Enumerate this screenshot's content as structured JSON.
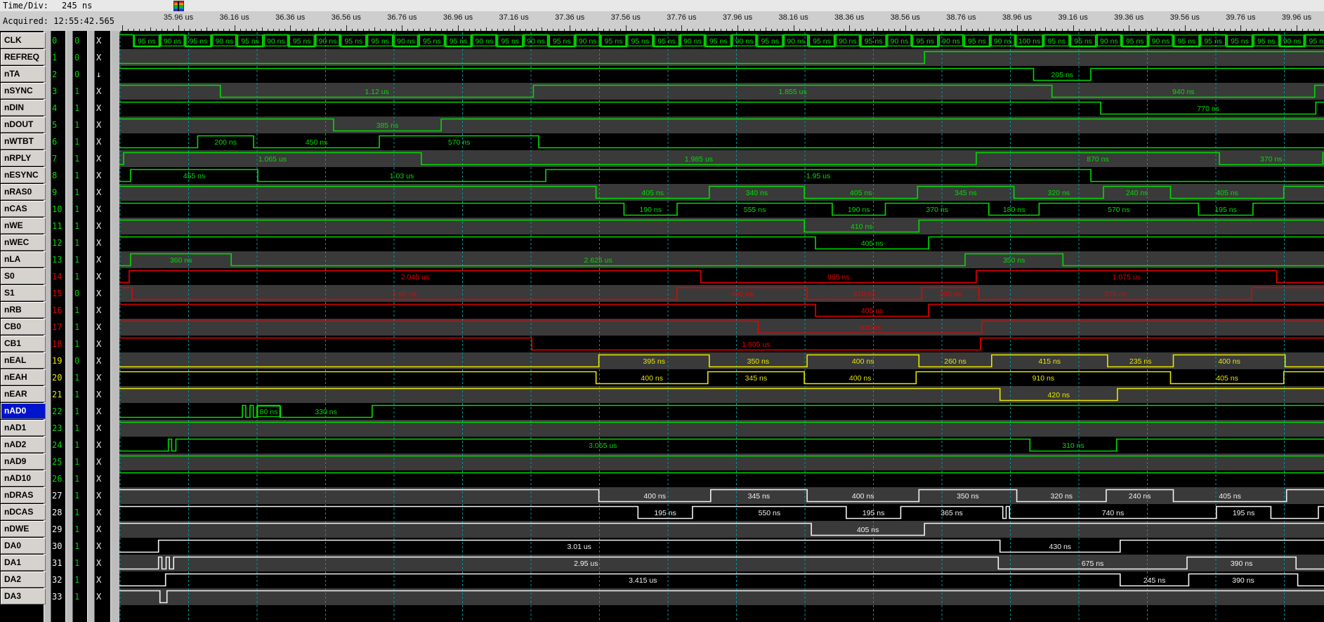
{
  "header": {
    "time_div_label": "Time/Div:",
    "time_div_value": "245 ns",
    "acquired_label": "Acquired:",
    "acquired_value": "12:55:42.565"
  },
  "ruler": {
    "unit_labels": [
      "35.96 us",
      "36.16 us",
      "36.36 us",
      "36.56 us",
      "36.76 us",
      "36.96 us",
      "37.16 us",
      "37.36 us",
      "37.56 us",
      "37.76 us",
      "37.96 us",
      "38.16 us",
      "38.36 us",
      "38.56 us",
      "38.76 us",
      "38.96 us",
      "39.16 us",
      "39.36 us",
      "39.56 us",
      "39.76 us",
      "39.96 us"
    ]
  },
  "colors": {
    "green": "#00dc00",
    "red": "#e80000",
    "yellow": "#e6e600",
    "white": "#f2f2f2",
    "value": "#00d000",
    "trig": "#f0f0f0",
    "grid": "#00979c",
    "row_even_bg": "#000000",
    "row_odd_bg": "#3a3a3a",
    "selected_bg": "#0014cc"
  },
  "selected_signal": "nAD0",
  "signals": [
    {
      "name": "CLK",
      "ch": "0",
      "value": "0",
      "trig": "X",
      "color": "green",
      "clk": {
        "lead_ns": 50,
        "durations": [
          95,
          90,
          95,
          90,
          95,
          90,
          95,
          90,
          95,
          95,
          90,
          95,
          95,
          90,
          95,
          90,
          95,
          90,
          95,
          95,
          95,
          90,
          95,
          90,
          95,
          90,
          95,
          90,
          95,
          90,
          95,
          90,
          95,
          90,
          100,
          95,
          95,
          90,
          95,
          90,
          95,
          95,
          95,
          95,
          90,
          95
        ]
      }
    },
    {
      "name": "REFREQ",
      "ch": "1",
      "value": "0",
      "trig": "X",
      "color": "green",
      "segments": [
        [
          0,
          2880
        ],
        [
          1,
          1430
        ]
      ]
    },
    {
      "name": "nTA",
      "ch": "2",
      "value": "0",
      "trig": "↓",
      "color": "green",
      "segments": [
        [
          1,
          3270
        ],
        [
          0,
          205,
          "205 ns"
        ],
        [
          1,
          835
        ]
      ]
    },
    {
      "name": "nSYNC",
      "ch": "3",
      "value": "1",
      "trig": "X",
      "color": "green",
      "segments": [
        [
          1,
          361
        ],
        [
          0,
          1120,
          "1.12 us"
        ],
        [
          1,
          1855,
          "1.855 us"
        ],
        [
          0,
          940,
          "940 ns"
        ],
        [
          1,
          34
        ]
      ]
    },
    {
      "name": "nDIN",
      "ch": "4",
      "value": "1",
      "trig": "X",
      "color": "green",
      "segments": [
        [
          1,
          3510
        ],
        [
          0,
          770,
          "770 ns"
        ],
        [
          1,
          30
        ]
      ]
    },
    {
      "name": "nDOUT",
      "ch": "5",
      "value": "1",
      "trig": "X",
      "color": "green",
      "segments": [
        [
          1,
          766
        ],
        [
          0,
          385,
          "385 ns"
        ],
        [
          1,
          3159
        ]
      ]
    },
    {
      "name": "nWTBT",
      "ch": "6",
      "value": "1",
      "trig": "X",
      "color": "green",
      "segments": [
        [
          0,
          280
        ],
        [
          1,
          200,
          "200 ns"
        ],
        [
          0,
          450,
          "450 ns"
        ],
        [
          1,
          570,
          "570 ns"
        ],
        [
          0,
          2810
        ]
      ]
    },
    {
      "name": "nRPLY",
      "ch": "7",
      "value": "1",
      "trig": "X",
      "color": "green",
      "segments": [
        [
          0,
          15
        ],
        [
          1,
          1065,
          "1.065 us"
        ],
        [
          0,
          1985,
          "1.985 us"
        ],
        [
          1,
          870,
          "870 ns"
        ],
        [
          0,
          370,
          "370 ns"
        ],
        [
          1,
          5
        ]
      ]
    },
    {
      "name": "nESYNC",
      "ch": "8",
      "value": "1",
      "trig": "X",
      "color": "green",
      "segments": [
        [
          0,
          40
        ],
        [
          1,
          455,
          "455 ns"
        ],
        [
          0,
          1030,
          "1.03 us"
        ],
        [
          1,
          1950,
          "1.95 us"
        ],
        [
          0,
          835
        ]
      ]
    },
    {
      "name": "nRAS0",
      "ch": "9",
      "value": "1",
      "trig": "X",
      "color": "green",
      "segments": [
        [
          1,
          1705
        ],
        [
          0,
          405,
          "405 ns"
        ],
        [
          1,
          340,
          "340 ns"
        ],
        [
          0,
          405,
          "405 ns"
        ],
        [
          1,
          345,
          "345 ns"
        ],
        [
          0,
          320,
          "320 ns"
        ],
        [
          1,
          240,
          "240 ns"
        ],
        [
          0,
          405,
          "405 ns"
        ],
        [
          1,
          145
        ]
      ]
    },
    {
      "name": "nCAS",
      "ch": "10",
      "value": "1",
      "trig": "X",
      "color": "green",
      "segments": [
        [
          1,
          1805
        ],
        [
          0,
          190,
          "190 ns"
        ],
        [
          1,
          555,
          "555 ns"
        ],
        [
          0,
          190,
          "190 ns"
        ],
        [
          1,
          370,
          "370 ns"
        ],
        [
          0,
          180,
          "180 ns"
        ],
        [
          1,
          570,
          "570 ns"
        ],
        [
          0,
          195,
          "195 ns"
        ],
        [
          1,
          255
        ]
      ]
    },
    {
      "name": "nWE",
      "ch": "11",
      "value": "1",
      "trig": "X",
      "color": "green",
      "segments": [
        [
          1,
          2450
        ],
        [
          0,
          410,
          "410 ns"
        ],
        [
          1,
          1450
        ]
      ]
    },
    {
      "name": "nWEC",
      "ch": "12",
      "value": "1",
      "trig": "X",
      "color": "green",
      "segments": [
        [
          1,
          2490
        ],
        [
          0,
          405,
          "405 ns"
        ],
        [
          1,
          1415
        ]
      ]
    },
    {
      "name": "nLA",
      "ch": "13",
      "value": "1",
      "trig": "X",
      "color": "green",
      "segments": [
        [
          0,
          40
        ],
        [
          1,
          360,
          "360 ns"
        ],
        [
          0,
          2625,
          "2.625 us"
        ],
        [
          1,
          350,
          "350 ns"
        ],
        [
          0,
          935
        ]
      ]
    },
    {
      "name": "S0",
      "ch": "14",
      "value": "1",
      "trig": "X",
      "color": "red",
      "segments": [
        [
          0,
          35
        ],
        [
          1,
          2045,
          "2.045 us"
        ],
        [
          0,
          985,
          "985 ns"
        ],
        [
          1,
          1075,
          "1.075 us"
        ],
        [
          0,
          170
        ]
      ]
    },
    {
      "name": "S1",
      "ch": "15",
      "value": "0",
      "trig": "X",
      "color": "red",
      "segments": [
        [
          1,
          45
        ],
        [
          0,
          1950,
          "1.95 us"
        ],
        [
          1,
          465,
          "465 ns"
        ],
        [
          0,
          410,
          "410 ns"
        ],
        [
          1,
          205,
          "205 ns"
        ],
        [
          0,
          975,
          "975 ns"
        ],
        [
          1,
          260
        ]
      ]
    },
    {
      "name": "nRB",
      "ch": "16",
      "value": "1",
      "trig": "X",
      "color": "red",
      "segments": [
        [
          1,
          2490
        ],
        [
          0,
          405,
          "405 ns"
        ],
        [
          1,
          1415
        ]
      ]
    },
    {
      "name": "CB0",
      "ch": "17",
      "value": "1",
      "trig": "X",
      "color": "red",
      "segments": [
        [
          1,
          2285
        ],
        [
          0,
          800,
          "800 ns"
        ],
        [
          1,
          1225
        ]
      ]
    },
    {
      "name": "CB1",
      "ch": "18",
      "value": "1",
      "trig": "X",
      "color": "red",
      "segments": [
        [
          1,
          1475
        ],
        [
          0,
          1605,
          "1.605 us"
        ],
        [
          1,
          1230
        ]
      ]
    },
    {
      "name": "nEAL",
      "ch": "19",
      "value": "0",
      "trig": "X",
      "color": "yellow",
      "segments": [
        [
          0,
          1715
        ],
        [
          1,
          395,
          "395 ns"
        ],
        [
          0,
          350,
          "350 ns"
        ],
        [
          1,
          400,
          "400 ns"
        ],
        [
          0,
          260,
          "260 ns"
        ],
        [
          1,
          415,
          "415 ns"
        ],
        [
          0,
          235,
          "235 ns"
        ],
        [
          1,
          400,
          "400 ns"
        ],
        [
          0,
          140
        ]
      ]
    },
    {
      "name": "nEAH",
      "ch": "20",
      "value": "1",
      "trig": "X",
      "color": "yellow",
      "segments": [
        [
          1,
          1705
        ],
        [
          0,
          400,
          "400 ns"
        ],
        [
          1,
          345,
          "345 ns"
        ],
        [
          0,
          400,
          "400 ns"
        ],
        [
          1,
          910,
          "910 ns"
        ],
        [
          0,
          405,
          "405 ns"
        ],
        [
          1,
          145
        ]
      ]
    },
    {
      "name": "nEAR",
      "ch": "21",
      "value": "1",
      "trig": "X",
      "color": "yellow",
      "segments": [
        [
          1,
          3150
        ],
        [
          0,
          420,
          "420 ns"
        ],
        [
          1,
          740
        ]
      ]
    },
    {
      "name": "nAD0",
      "ch": "22",
      "value": "1",
      "trig": "X",
      "color": "green",
      "segments": [
        [
          0,
          440
        ],
        [
          1,
          12
        ],
        [
          0,
          15
        ],
        [
          1,
          12
        ],
        [
          0,
          15
        ],
        [
          1,
          80,
          "80 ns",
          true
        ],
        [
          0,
          330,
          "330 ns"
        ],
        [
          1,
          3406
        ]
      ]
    },
    {
      "name": "nAD1",
      "ch": "23",
      "value": "1",
      "trig": "X",
      "color": "green",
      "segments": [
        [
          1,
          4310
        ]
      ]
    },
    {
      "name": "nAD2",
      "ch": "24",
      "value": "1",
      "trig": "X",
      "color": "green",
      "segments": [
        [
          0,
          175
        ],
        [
          1,
          12
        ],
        [
          0,
          15
        ],
        [
          1,
          3055,
          "3.055 us"
        ],
        [
          0,
          310,
          "310 ns"
        ],
        [
          1,
          743
        ]
      ]
    },
    {
      "name": "nAD9",
      "ch": "25",
      "value": "1",
      "trig": "X",
      "color": "green",
      "segments": [
        [
          1,
          4310
        ]
      ]
    },
    {
      "name": "nAD10",
      "ch": "26",
      "value": "1",
      "trig": "X",
      "color": "green",
      "segments": [
        [
          1,
          4310
        ]
      ]
    },
    {
      "name": "nDRAS",
      "ch": "27",
      "value": "1",
      "trig": "X",
      "color": "white",
      "segments": [
        [
          1,
          1715
        ],
        [
          0,
          400,
          "400 ns"
        ],
        [
          1,
          345,
          "345 ns"
        ],
        [
          0,
          400,
          "400 ns"
        ],
        [
          1,
          350,
          "350 ns"
        ],
        [
          0,
          320,
          "320 ns"
        ],
        [
          1,
          240,
          "240 ns"
        ],
        [
          0,
          405,
          "405 ns"
        ],
        [
          1,
          135
        ]
      ]
    },
    {
      "name": "nDCAS",
      "ch": "28",
      "value": "1",
      "trig": "X",
      "color": "white",
      "segments": [
        [
          1,
          1855
        ],
        [
          0,
          195,
          "195 ns"
        ],
        [
          1,
          550,
          "550 ns"
        ],
        [
          0,
          195,
          "195 ns"
        ],
        [
          1,
          365,
          "365 ns"
        ],
        [
          0,
          12
        ],
        [
          1,
          12
        ],
        [
          0,
          740,
          "740 ns"
        ],
        [
          1,
          195,
          "195 ns"
        ],
        [
          0,
          170
        ],
        [
          1,
          21
        ]
      ]
    },
    {
      "name": "nDWE",
      "ch": "29",
      "value": "1",
      "trig": "X",
      "color": "white",
      "segments": [
        [
          1,
          2475
        ],
        [
          0,
          405,
          "405 ns"
        ],
        [
          1,
          1430
        ]
      ]
    },
    {
      "name": "DA0",
      "ch": "30",
      "value": "1",
      "trig": "X",
      "color": "white",
      "segments": [
        [
          0,
          140
        ],
        [
          1,
          3010,
          "3.01 us"
        ],
        [
          0,
          430,
          "430 ns"
        ],
        [
          1,
          730
        ]
      ]
    },
    {
      "name": "DA1",
      "ch": "31",
      "value": "1",
      "trig": "X",
      "color": "white",
      "segments": [
        [
          0,
          140
        ],
        [
          1,
          12
        ],
        [
          0,
          15
        ],
        [
          1,
          12
        ],
        [
          0,
          15
        ],
        [
          1,
          2950,
          "2.95 us"
        ],
        [
          0,
          675,
          "675 ns"
        ],
        [
          1,
          390,
          "390 ns"
        ],
        [
          0,
          101
        ]
      ]
    },
    {
      "name": "DA2",
      "ch": "32",
      "value": "1",
      "trig": "X",
      "color": "white",
      "segments": [
        [
          0,
          165
        ],
        [
          1,
          3415,
          "3.415 us"
        ],
        [
          0,
          245,
          "245 ns"
        ],
        [
          1,
          390,
          "390 ns"
        ],
        [
          0,
          95
        ]
      ]
    },
    {
      "name": "DA3",
      "ch": "33",
      "value": "1",
      "trig": "X",
      "color": "white",
      "segments": [
        [
          1,
          145
        ],
        [
          0,
          25
        ],
        [
          1,
          4140
        ]
      ]
    }
  ]
}
